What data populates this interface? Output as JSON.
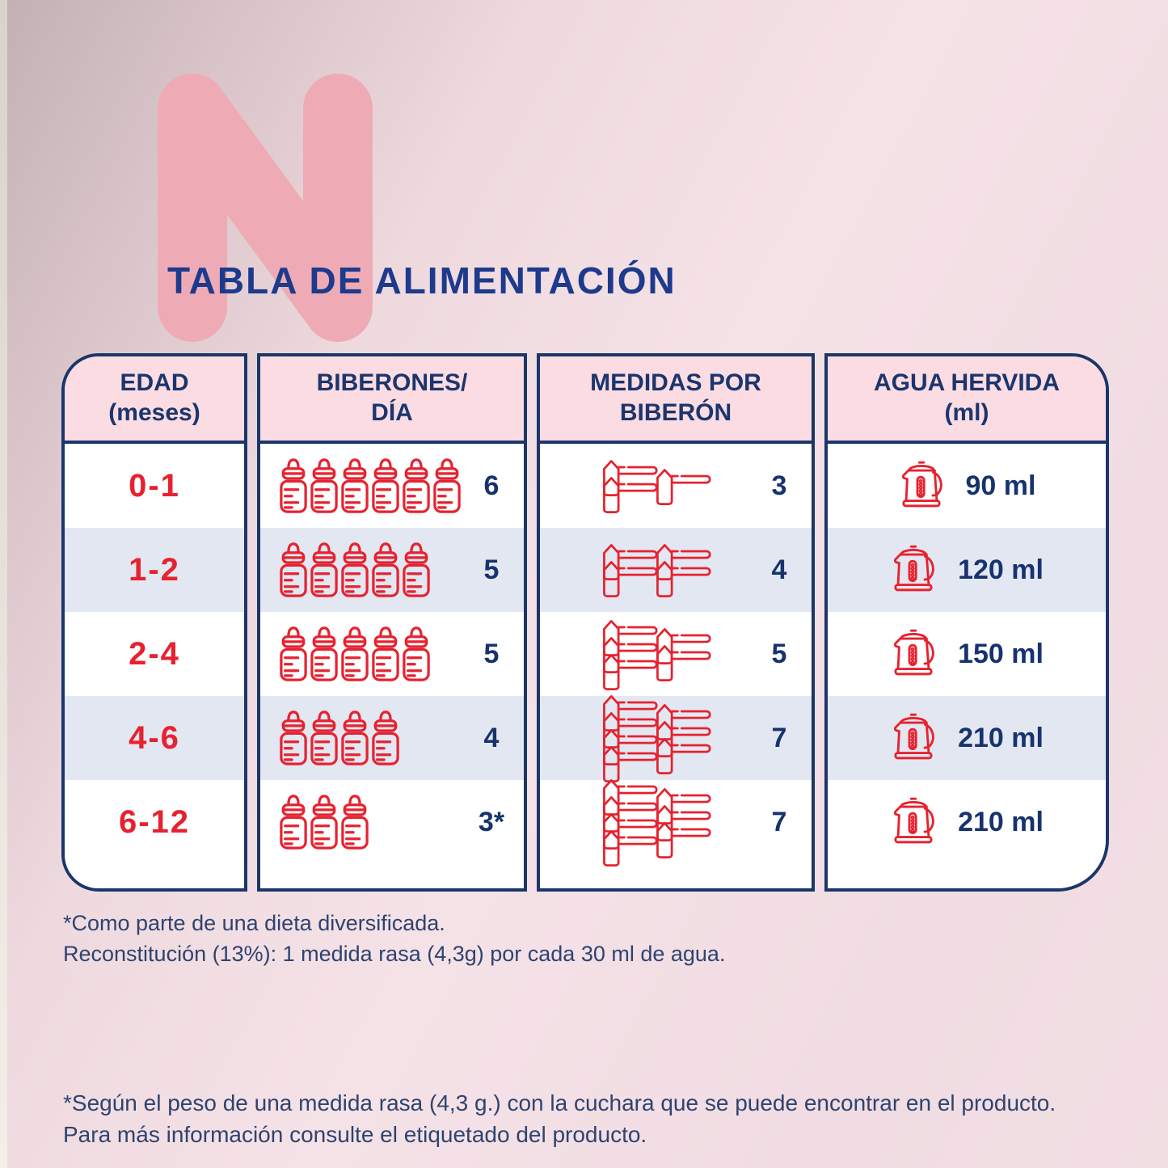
{
  "title": "TABLA DE ALIMENTACIÓN",
  "watermark_letter": "N",
  "colors": {
    "navy_border": "#1a366b",
    "navy_text": "#17336e",
    "title_blue": "#1d3a8c",
    "accent_red": "#e6222f",
    "header_pink": "#fbdce2",
    "row_stripe": "#e3e7f1",
    "watermark_pink": "#eeabb6"
  },
  "table": {
    "columns": [
      {
        "id": "edad",
        "header": "EDAD\n(meses)"
      },
      {
        "id": "biberones",
        "header": "BIBERONES/\nDÍA"
      },
      {
        "id": "medidas",
        "header": "MEDIDAS POR\nBIBERÓN"
      },
      {
        "id": "agua",
        "header": "AGUA HERVIDA\n(ml)"
      }
    ],
    "rows": [
      {
        "edad": "0-1",
        "biberones_count": 6,
        "biberones_label": "6",
        "medidas_count": 3,
        "medidas_label": "3",
        "medidas_stacks": [
          2,
          1
        ],
        "agua_label": "90 ml"
      },
      {
        "edad": "1-2",
        "biberones_count": 5,
        "biberones_label": "5",
        "medidas_count": 4,
        "medidas_label": "4",
        "medidas_stacks": [
          2,
          2
        ],
        "agua_label": "120 ml"
      },
      {
        "edad": "2-4",
        "biberones_count": 5,
        "biberones_label": "5",
        "medidas_count": 5,
        "medidas_label": "5",
        "medidas_stacks": [
          3,
          2
        ],
        "agua_label": "150 ml"
      },
      {
        "edad": "4-6",
        "biberones_count": 4,
        "biberones_label": "4",
        "medidas_count": 7,
        "medidas_label": "7",
        "medidas_stacks": [
          4,
          3
        ],
        "agua_label": "210 ml"
      },
      {
        "edad": "6-12",
        "biberones_count": 3,
        "biberones_label": "3*",
        "medidas_count": 7,
        "medidas_label": "7",
        "medidas_stacks": [
          4,
          3
        ],
        "agua_label": "210 ml"
      }
    ]
  },
  "icons": {
    "bottle": "baby-bottle-icon",
    "scoop": "measuring-scoop-icon",
    "kettle": "kettle-icon"
  },
  "footnotes": {
    "note1": "*Como parte de una dieta diversificada.",
    "note2": "Reconstitución (13%): 1 medida rasa (4,3g) por cada 30 ml de agua.",
    "note3": "*Según el peso de una medida rasa (4,3 g.) con la cuchara que se puede encontrar en el producto.",
    "note4": "Para más información consulte el etiquetado del producto."
  }
}
